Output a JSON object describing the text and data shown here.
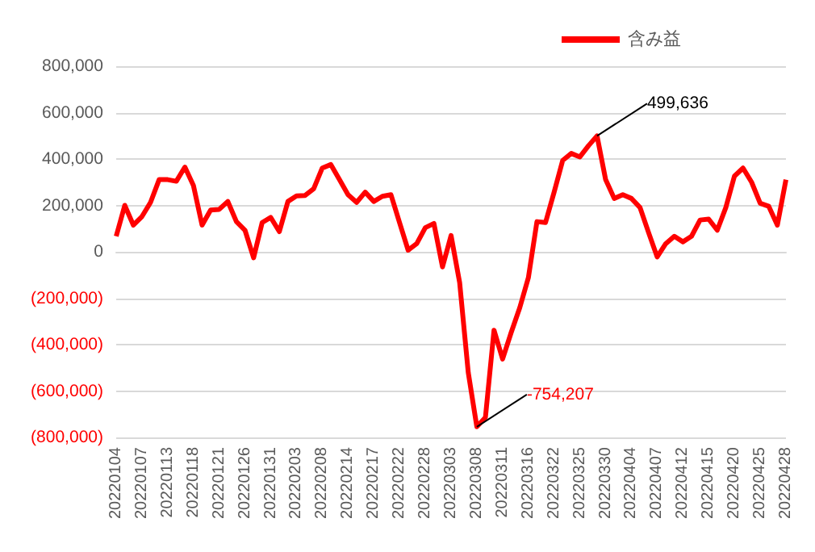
{
  "chart_data": {
    "type": "line",
    "categories": [
      "20220104",
      null,
      null,
      "20220107",
      null,
      null,
      "20220113",
      null,
      null,
      "20220118",
      null,
      null,
      "20220121",
      null,
      null,
      "20220126",
      null,
      null,
      "20220131",
      null,
      null,
      "20220203",
      null,
      null,
      "20220208",
      null,
      null,
      "20220214",
      null,
      null,
      "20220217",
      null,
      null,
      "20220222",
      null,
      null,
      "20220228",
      null,
      null,
      "20220303",
      null,
      null,
      "20220308",
      null,
      null,
      "20220311",
      null,
      null,
      "20220316",
      null,
      null,
      "20220322",
      null,
      null,
      "20220325",
      null,
      null,
      "20220330",
      null,
      null,
      "20220404",
      null,
      null,
      "20220407",
      null,
      null,
      "20220412",
      null,
      null,
      "20220415",
      null,
      null,
      "20220420",
      null,
      null,
      "20220425",
      null,
      null,
      "20220428"
    ],
    "series": [
      {
        "name": "含み益",
        "color": "#ff0000",
        "values": [
          67000,
          200000,
          115000,
          152000,
          213000,
          311000,
          311000,
          304000,
          365000,
          285000,
          115000,
          180000,
          183000,
          217000,
          130000,
          93000,
          -26000,
          126000,
          148000,
          87000,
          217000,
          241000,
          243000,
          272000,
          361000,
          376000,
          311000,
          246000,
          213000,
          257000,
          217000,
          239000,
          246000,
          126000,
          7000,
          35000,
          104000,
          122000,
          -65000,
          70000,
          -133000,
          -520000,
          -754207,
          -714000,
          -338000,
          -462000,
          -348000,
          -241000,
          -112000,
          130000,
          126000,
          257000,
          394000,
          424000,
          409000,
          457000,
          499636,
          311000,
          230000,
          246000,
          230000,
          191000,
          83000,
          -22000,
          35000,
          67000,
          43000,
          67000,
          137000,
          141000,
          93000,
          191000,
          326000,
          361000,
          300000,
          209000,
          196000,
          115000,
          311000
        ],
        "value_labels": [
          null,
          null,
          null,
          null,
          null,
          null,
          null,
          null,
          null,
          null,
          null,
          null,
          null,
          null,
          null,
          null,
          null,
          null,
          null,
          null,
          null,
          null,
          null,
          null,
          null,
          null,
          null,
          null,
          null,
          null,
          null,
          null,
          null,
          null,
          null,
          null,
          null,
          null,
          null,
          null,
          null,
          null,
          "-754,207",
          null,
          null,
          null,
          null,
          null,
          null,
          null,
          null,
          null,
          null,
          null,
          null,
          null,
          "499,636",
          null,
          null,
          null,
          null,
          null,
          null,
          null,
          null,
          null,
          null,
          null,
          null,
          null,
          null,
          null,
          null,
          null,
          null,
          null,
          null,
          null,
          null
        ]
      }
    ],
    "ylim": [
      -800000,
      800000
    ],
    "yticks": [
      {
        "value": -800000,
        "label": "(800,000)"
      },
      {
        "value": -600000,
        "label": "(600,000)"
      },
      {
        "value": -400000,
        "label": "(400,000)"
      },
      {
        "value": -200000,
        "label": "(200,000)"
      },
      {
        "value": 0,
        "label": "0"
      },
      {
        "value": 200000,
        "label": "200,000"
      },
      {
        "value": 400000,
        "label": "400,000"
      },
      {
        "value": 600000,
        "label": "600,000"
      },
      {
        "value": 800000,
        "label": "800,000"
      }
    ],
    "grid": "y",
    "legend": "top right",
    "marker": "none",
    "line_style": "solid"
  }
}
